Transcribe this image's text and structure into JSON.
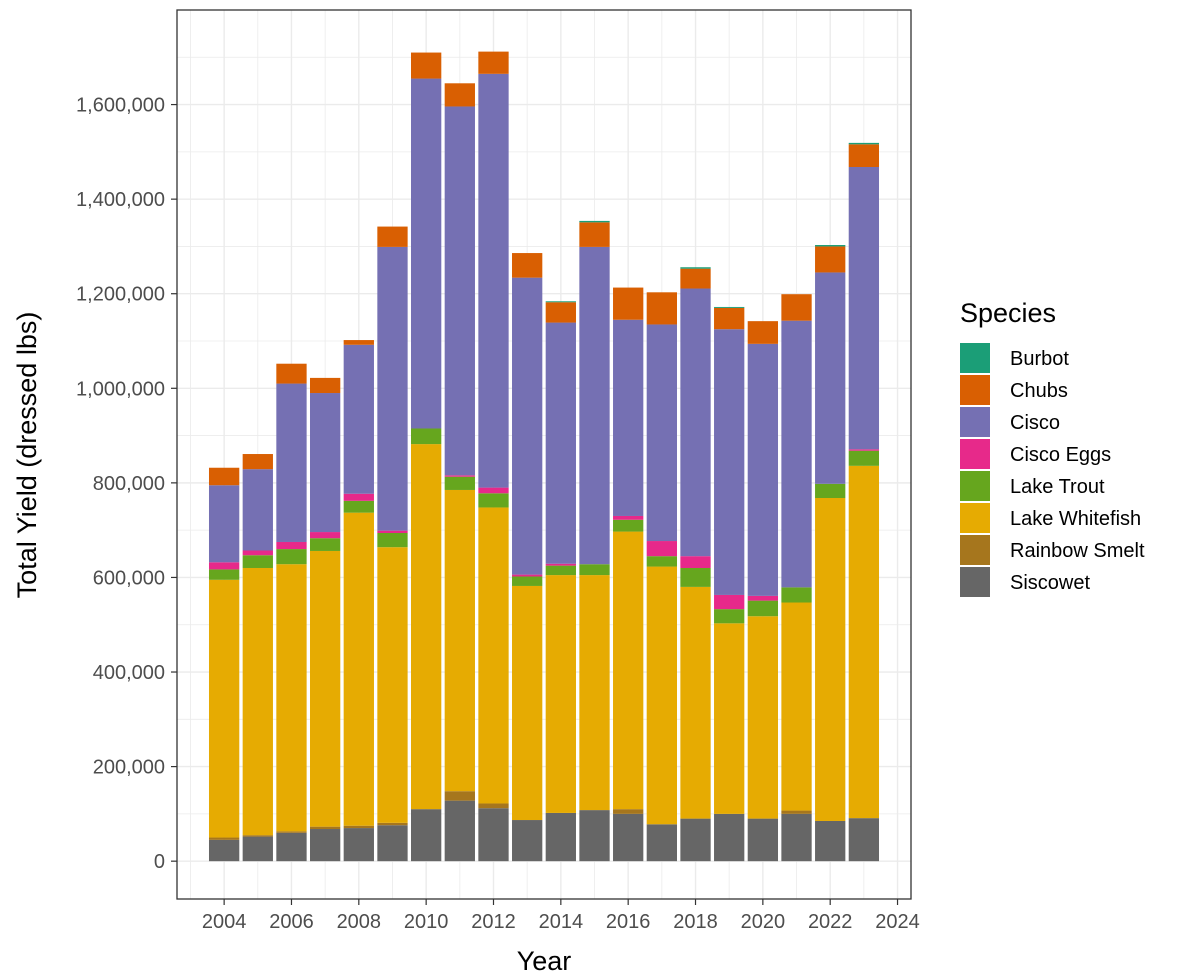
{
  "chart_data": {
    "type": "bar",
    "stacked": true,
    "title": "",
    "xlabel": "Year",
    "ylabel": "Total Yield (dressed lbs)",
    "legend_title": "Species",
    "legend_position": "right",
    "grid": true,
    "xlim": [
      2002.6,
      2024.4
    ],
    "ylim": [
      -80000,
      1800000
    ],
    "x_ticks": [
      2004,
      2006,
      2008,
      2010,
      2012,
      2014,
      2016,
      2018,
      2020,
      2022,
      2024
    ],
    "x_tick_labels": [
      "2004",
      "2006",
      "2008",
      "2010",
      "2012",
      "2014",
      "2016",
      "2018",
      "2020",
      "2022",
      "2024"
    ],
    "y_ticks": [
      0,
      200000,
      400000,
      600000,
      800000,
      1000000,
      1200000,
      1400000,
      1600000
    ],
    "y_tick_labels": [
      "0",
      "200,000",
      "400,000",
      "600,000",
      "800,000",
      "1,000,000",
      "1,200,000",
      "1,400,000",
      "1,600,000"
    ],
    "x": [
      2004,
      2005,
      2006,
      2007,
      2008,
      2009,
      2010,
      2011,
      2012,
      2013,
      2014,
      2015,
      2016,
      2017,
      2018,
      2019,
      2020,
      2021,
      2022,
      2023
    ],
    "series": [
      {
        "name": "Siscowet",
        "color": "#666666",
        "values": [
          45000,
          52000,
          60000,
          68000,
          70000,
          76000,
          110000,
          128000,
          112000,
          87000,
          102000,
          108000,
          100000,
          78000,
          90000,
          100000,
          90000,
          100000,
          85000,
          91000
        ]
      },
      {
        "name": "Rainbow Smelt",
        "color": "#A6761D",
        "values": [
          5000,
          3000,
          3000,
          5000,
          5000,
          5000,
          0,
          20000,
          10000,
          0,
          0,
          0,
          10000,
          0,
          0,
          0,
          0,
          7000,
          0,
          0
        ]
      },
      {
        "name": "Lake Whitefish",
        "color": "#E6AB02",
        "values": [
          545000,
          565000,
          565000,
          583000,
          662000,
          583000,
          772000,
          637000,
          626000,
          495000,
          503000,
          497000,
          587000,
          545000,
          490000,
          403000,
          428000,
          440000,
          683000,
          745000
        ]
      },
      {
        "name": "Lake Trout",
        "color": "#66A61E",
        "values": [
          22000,
          27000,
          32000,
          27000,
          25000,
          30000,
          33000,
          28000,
          30000,
          20000,
          20000,
          23000,
          25000,
          22000,
          40000,
          30000,
          33000,
          32000,
          30000,
          32000
        ]
      },
      {
        "name": "Cisco Eggs",
        "color": "#E7298A",
        "values": [
          15000,
          10000,
          15000,
          13000,
          15000,
          5000,
          0,
          3000,
          12000,
          4000,
          4000,
          0,
          8000,
          32000,
          25000,
          30000,
          10000,
          0,
          0,
          3000
        ]
      },
      {
        "name": "Cisco",
        "color": "#7570B3",
        "values": [
          163000,
          172000,
          335000,
          294000,
          315000,
          600000,
          740000,
          780000,
          875000,
          628000,
          510000,
          671000,
          415000,
          458000,
          566000,
          562000,
          533000,
          564000,
          447000,
          597000
        ]
      },
      {
        "name": "Chubs",
        "color": "#D95F02",
        "values": [
          37000,
          32000,
          42000,
          32000,
          10000,
          43000,
          55000,
          49000,
          47000,
          52000,
          43000,
          52000,
          68000,
          68000,
          42000,
          45000,
          48000,
          56000,
          55000,
          48000
        ]
      },
      {
        "name": "Burbot",
        "color": "#1B9E77",
        "values": [
          0,
          0,
          0,
          0,
          0,
          0,
          0,
          0,
          0,
          0,
          2000,
          3000,
          0,
          0,
          3000,
          2000,
          0,
          0,
          3000,
          3000
        ]
      }
    ],
    "legend_order": [
      "Burbot",
      "Chubs",
      "Cisco",
      "Cisco Eggs",
      "Lake Trout",
      "Lake Whitefish",
      "Rainbow Smelt",
      "Siscowet"
    ]
  }
}
